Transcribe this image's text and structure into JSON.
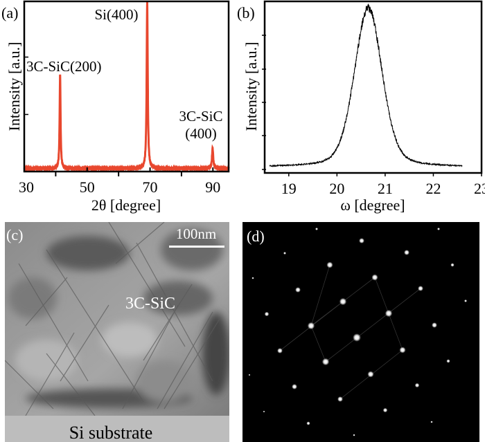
{
  "chart_data": [
    {
      "panel_label": "(a)",
      "type": "line",
      "xlabel": "2θ [degree]",
      "ylabel": "Intensity [a.u.]",
      "xlim": [
        30,
        95
      ],
      "ylim": [
        0,
        1
      ],
      "xticks": [
        30,
        50,
        70,
        90
      ],
      "xminor_ticks": [
        40,
        60,
        80
      ],
      "yticks_labeled": false,
      "grid": false,
      "line_color": "#e8472e",
      "peaks": [
        {
          "label": "3C-SiC(200)",
          "x": 41.4,
          "y": 0.57,
          "fwhm": 0.35
        },
        {
          "label": "Si(400)",
          "x": 69.1,
          "y": 1.0,
          "fwhm": 0.4
        },
        {
          "label": "3C-SiC\n(400)",
          "label_lines": [
            "3C-SiC",
            "(400)"
          ],
          "x": 89.9,
          "y": 0.13,
          "fwhm": 0.45
        }
      ],
      "baseline": 0.01
    },
    {
      "panel_label": "(b)",
      "type": "line",
      "xlabel": "ω [degree]",
      "ylabel": "Intensity [a.u.]",
      "xlim": [
        18.5,
        23
      ],
      "ylim": [
        0,
        1.05
      ],
      "xticks": [
        19,
        20,
        21,
        22,
        23
      ],
      "yticks_labeled": false,
      "grid": false,
      "line_color": "#000000",
      "x_range": [
        18.6,
        22.6
      ],
      "peak_center": 20.65,
      "peak_fwhm": 0.68,
      "peak_height": 1.0
    }
  ],
  "panel_c": {
    "panel_label": "(c)",
    "scale_bar": "100nm",
    "layer_label": "3C-SiC",
    "substrate_label": "Si substrate"
  },
  "panel_d": {
    "panel_label": "(d)"
  }
}
